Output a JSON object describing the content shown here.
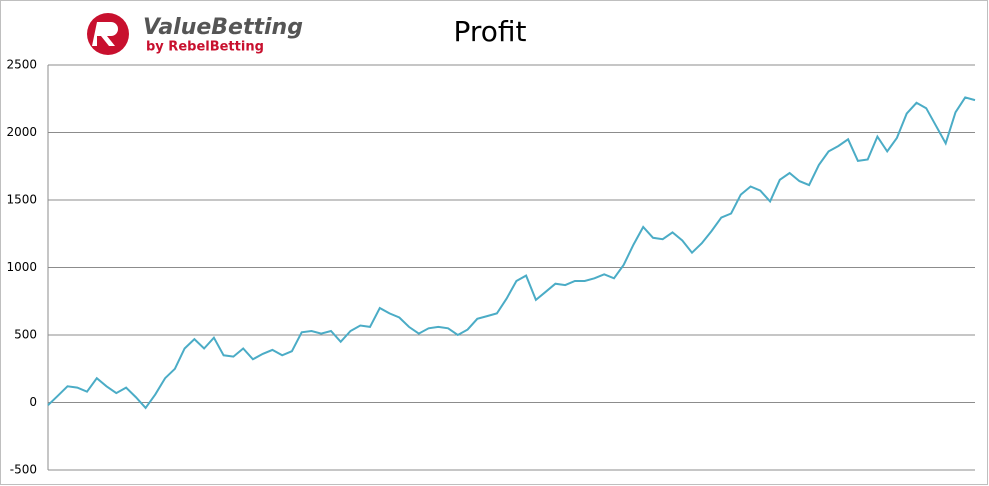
{
  "logo": {
    "name": "ValueBetting",
    "tagline": "by RebelBetting"
  },
  "chart_data": {
    "type": "line",
    "title": "Profit",
    "ylim": [
      -500,
      2500
    ],
    "yticks": [
      -500,
      0,
      500,
      1000,
      1500,
      2000,
      2500
    ],
    "grid": true,
    "series": [
      {
        "color": "#4bacc6",
        "values": [
          -20,
          50,
          120,
          110,
          80,
          180,
          120,
          70,
          110,
          40,
          -40,
          60,
          180,
          250,
          400,
          470,
          400,
          480,
          350,
          340,
          400,
          320,
          360,
          390,
          350,
          380,
          520,
          530,
          510,
          530,
          450,
          530,
          570,
          560,
          700,
          660,
          630,
          560,
          510,
          550,
          560,
          550,
          500,
          540,
          620,
          640,
          660,
          770,
          900,
          940,
          760,
          820,
          880,
          870,
          900,
          900,
          920,
          950,
          920,
          1020,
          1170,
          1300,
          1220,
          1210,
          1260,
          1200,
          1110,
          1180,
          1270,
          1370,
          1400,
          1540,
          1600,
          1570,
          1490,
          1650,
          1700,
          1640,
          1610,
          1760,
          1860,
          1900,
          1950,
          1790,
          1800,
          1970,
          1860,
          1960,
          2140,
          2220,
          2180,
          2050,
          1920,
          2150,
          2260,
          2240
        ]
      }
    ]
  }
}
